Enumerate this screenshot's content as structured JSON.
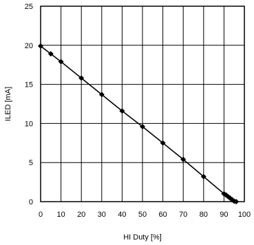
{
  "chart_data": {
    "type": "line",
    "title": "",
    "xlabel": "HI Duty [%]",
    "ylabel": "ILED [mA]",
    "xlim": [
      0,
      100
    ],
    "ylim": [
      0,
      25
    ],
    "xticks": [
      0,
      10,
      20,
      30,
      40,
      50,
      60,
      70,
      80,
      90,
      100
    ],
    "yticks": [
      0,
      5,
      10,
      15,
      20,
      25
    ],
    "xtick_labels": [
      "0",
      "10",
      "20",
      "30",
      "40",
      "50",
      "60",
      "70",
      "80",
      "90",
      "100"
    ],
    "ytick_labels": [
      "0",
      "5",
      "10",
      "15",
      "20",
      "25"
    ],
    "grid": true,
    "series": [
      {
        "x": [
          0,
          5,
          10,
          20,
          30,
          40,
          50,
          60,
          70,
          80,
          90,
          91,
          92,
          93,
          94,
          95,
          96
        ],
        "y": [
          19.9,
          18.9,
          17.9,
          15.8,
          13.7,
          11.6,
          9.6,
          7.5,
          5.4,
          3.2,
          1.0,
          0.85,
          0.65,
          0.45,
          0.25,
          0.05,
          0.0
        ],
        "marker": "diamond",
        "color": "#000000"
      }
    ]
  }
}
